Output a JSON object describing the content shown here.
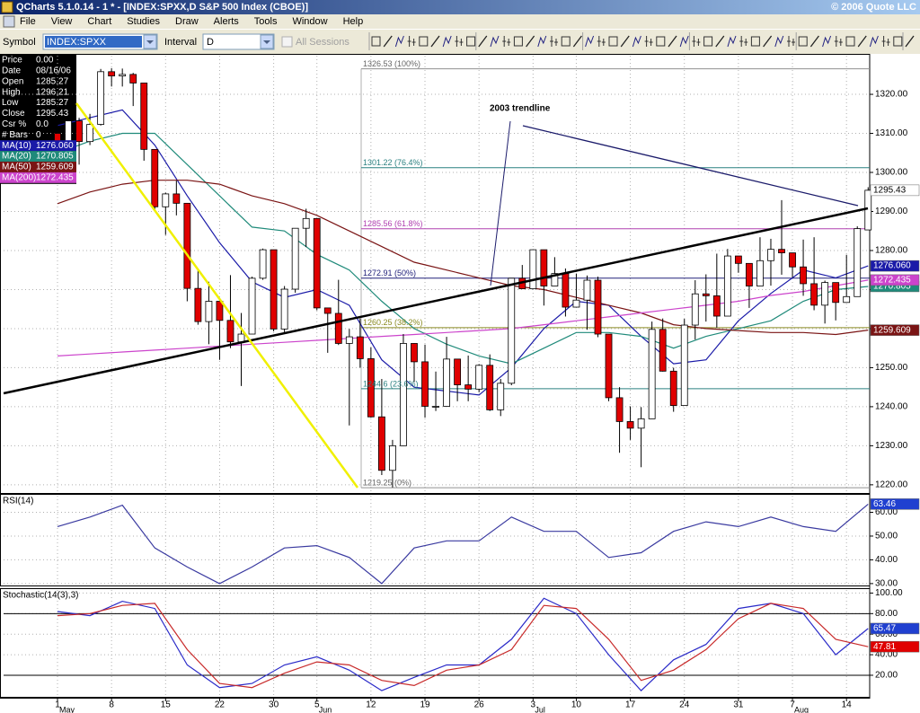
{
  "window": {
    "title": "QCharts 5.1.0.14 - 1 * - [INDEX:SPXX,D S&P 500 Index (CBOE)]",
    "copyright": "© 2006 Quote LLC",
    "menu": [
      "File",
      "View",
      "Chart",
      "Studies",
      "Draw",
      "Alerts",
      "Tools",
      "Window",
      "Help"
    ],
    "symbol_label": "Symbol",
    "symbol": "INDEX:SPXX",
    "interval_label": "Interval",
    "interval": "D",
    "all_sessions": "All Sessions"
  },
  "info_panel": [
    {
      "label": "Price",
      "value": "0.00"
    },
    {
      "label": "Date",
      "value": "08/16/06"
    },
    {
      "label": "Open",
      "value": "1285.27"
    },
    {
      "label": "High",
      "value": "1296.21"
    },
    {
      "label": "Low",
      "value": "1285.27"
    },
    {
      "label": "Close",
      "value": "1295.43"
    },
    {
      "label": "Csr %",
      "value": "0.0"
    },
    {
      "label": "# Bars",
      "value": "0"
    }
  ],
  "chart_data": [
    {
      "type": "candlestick",
      "annotation": "2003 trendline",
      "categories": [
        "1",
        null,
        null,
        null,
        null,
        "8",
        null,
        null,
        null,
        null,
        "15",
        null,
        null,
        null,
        null,
        "22",
        null,
        null,
        null,
        null,
        "30",
        null,
        null,
        null,
        "5",
        null,
        null,
        null,
        null,
        "12",
        null,
        null,
        null,
        null,
        "19",
        null,
        null,
        null,
        null,
        "26",
        null,
        null,
        null,
        null,
        "3",
        null,
        null,
        null,
        "10",
        null,
        null,
        null,
        null,
        "17",
        null,
        null,
        null,
        null,
        "24",
        null,
        null,
        null,
        null,
        "31",
        null,
        null,
        null,
        null,
        "7",
        null,
        null,
        null,
        null,
        "14",
        null,
        null
      ],
      "month_labels": [
        "May",
        null,
        null,
        null,
        null,
        null,
        null,
        null,
        null,
        null,
        null,
        null,
        null,
        null,
        null,
        null,
        null,
        null,
        null,
        null,
        null,
        null,
        null,
        null,
        "Jun",
        null,
        null,
        null,
        null,
        null,
        null,
        null,
        null,
        null,
        null,
        null,
        null,
        null,
        null,
        null,
        null,
        null,
        null,
        null,
        "Jul",
        null,
        null,
        null,
        null,
        null,
        null,
        null,
        null,
        null,
        null,
        null,
        null,
        null,
        null,
        null,
        null,
        null,
        null,
        null,
        null,
        null,
        null,
        null,
        "Aug",
        null,
        null,
        null,
        null,
        null,
        null,
        null
      ],
      "candles": [
        [
          1310,
          1317,
          1303,
          1305.2
        ],
        [
          1305.2,
          1314,
          1305,
          1313.2
        ],
        [
          1313.2,
          1314,
          1302,
          1307.9
        ],
        [
          1307.9,
          1315,
          1307,
          1312.3
        ],
        [
          1312.3,
          1326.5,
          1312,
          1325.8
        ],
        [
          1325.8,
          1326.7,
          1322,
          1324.7
        ],
        [
          1324.7,
          1326.6,
          1322,
          1325.1
        ],
        [
          1325.1,
          1325.5,
          1317,
          1322.9
        ],
        [
          1322.9,
          1322.9,
          1303,
          1305.9
        ],
        [
          1305.9,
          1305.9,
          1290,
          1291.2
        ],
        [
          1291.2,
          1294.8,
          1284,
          1294.5
        ],
        [
          1294.5,
          1297.9,
          1289,
          1292.1
        ],
        [
          1292.1,
          1292.1,
          1267,
          1270.3
        ],
        [
          1270.3,
          1274.9,
          1261,
          1261.8
        ],
        [
          1261.8,
          1272,
          1256,
          1267
        ],
        [
          1267,
          1267,
          1252,
          1262.1
        ],
        [
          1262.1,
          1273.7,
          1255,
          1256.6
        ],
        [
          1256.6,
          1264,
          1245.3,
          1258.6
        ],
        [
          1258.6,
          1273.3,
          1258.6,
          1272.9
        ],
        [
          1272.9,
          1280.5,
          1272.5,
          1280.2
        ],
        [
          1280.2,
          1280.2,
          1259.3,
          1259.9
        ],
        [
          1259.9,
          1270.9,
          1259,
          1270.1
        ],
        [
          1270.1,
          1285.7,
          1269.2,
          1285.7
        ],
        [
          1285.7,
          1290.7,
          1280.9,
          1288.2
        ],
        [
          1288.2,
          1288.2,
          1264.7,
          1265.3
        ],
        [
          1265.3,
          1265.3,
          1253.8,
          1263.9
        ],
        [
          1263.9,
          1272.5,
          1255.8,
          1256.2
        ],
        [
          1256.2,
          1259.9,
          1235.2,
          1257.9
        ],
        [
          1257.9,
          1262.6,
          1250,
          1252.3
        ],
        [
          1252.3,
          1255.2,
          1237.2,
          1237.4
        ],
        [
          1237.4,
          1247.1,
          1222.5,
          1223.7
        ],
        [
          1223.7,
          1231.5,
          1219.3,
          1230
        ],
        [
          1230,
          1258.6,
          1230,
          1256.2
        ],
        [
          1256.2,
          1256.3,
          1246.3,
          1251.5
        ],
        [
          1251.5,
          1255.9,
          1237.2,
          1240.1
        ],
        [
          1240.1,
          1249,
          1238.9,
          1240.1
        ],
        [
          1240.1,
          1257.9,
          1240.1,
          1252.2
        ],
        [
          1252.2,
          1252.2,
          1241.4,
          1245.6
        ],
        [
          1245.6,
          1253.1,
          1241.4,
          1244.5
        ],
        [
          1244.5,
          1250.9,
          1243.7,
          1250.6
        ],
        [
          1250.6,
          1253.4,
          1238.9,
          1239.2
        ],
        [
          1239.2,
          1247.1,
          1237.6,
          1246
        ],
        [
          1246,
          1272.9,
          1245.5,
          1272.9
        ],
        [
          1272.9,
          1276.3,
          1270.2,
          1270.2
        ],
        [
          1270.2,
          1280.3,
          1270.2,
          1280.2
        ],
        [
          1280.2,
          1280.2,
          1265.9,
          1270.9
        ],
        [
          1270.9,
          1278.3,
          1270.9,
          1274.1
        ],
        [
          1274.1,
          1275.4,
          1263.1,
          1265.5
        ],
        [
          1265.5,
          1274.1,
          1265.5,
          1267.3
        ],
        [
          1267.3,
          1273.6,
          1259.7,
          1272.4
        ],
        [
          1272.4,
          1273.3,
          1257.8,
          1258.6
        ],
        [
          1258.6,
          1258.6,
          1241.4,
          1242.3
        ],
        [
          1242.3,
          1245,
          1228.2,
          1236.2
        ],
        [
          1236.2,
          1240.1,
          1231.5,
          1234.5
        ],
        [
          1234.5,
          1239.9,
          1224.5,
          1236.9
        ],
        [
          1236.9,
          1261.8,
          1236.9,
          1259.8
        ],
        [
          1259.8,
          1262.6,
          1249,
          1249.1
        ],
        [
          1249.1,
          1250,
          1238.7,
          1240.3
        ],
        [
          1240.3,
          1262.5,
          1240.3,
          1260.9
        ],
        [
          1260.9,
          1272.4,
          1257.2,
          1268.9
        ],
        [
          1268.9,
          1273.9,
          1261.8,
          1268.4
        ],
        [
          1268.4,
          1279.2,
          1260.2,
          1263.2
        ],
        [
          1263.2,
          1280.4,
          1263.2,
          1278.6
        ],
        [
          1278.6,
          1278.6,
          1274.3,
          1276.7
        ],
        [
          1276.7,
          1276.7,
          1265.3,
          1270.9
        ],
        [
          1270.9,
          1283.4,
          1270.9,
          1277.4
        ],
        [
          1277.4,
          1283,
          1271,
          1280.3
        ],
        [
          1280.3,
          1292.9,
          1273.8,
          1279.4
        ],
        [
          1279.4,
          1279.4,
          1273.1,
          1275.8
        ],
        [
          1275.8,
          1282.8,
          1268.4,
          1271.5
        ],
        [
          1271.5,
          1283.4,
          1264.7,
          1266
        ],
        [
          1266,
          1272.3,
          1261.3,
          1271.8
        ],
        [
          1271.8,
          1271.8,
          1262.1,
          1266.7
        ],
        [
          1266.7,
          1278.9,
          1266.7,
          1268.2
        ],
        [
          1268.2,
          1286.2,
          1268.2,
          1285.6
        ],
        [
          1285.27,
          1296.21,
          1285.27,
          1295.43
        ]
      ],
      "up_color": "#ffffff",
      "down_color": "#e00000",
      "ylim": [
        1217.9,
        1329.9
      ],
      "yticks": [
        {
          "value": 1220,
          "label": "1220.00"
        },
        {
          "value": 1230,
          "label": "1230.00"
        },
        {
          "value": 1240,
          "label": "1240.00"
        },
        {
          "value": 1250,
          "label": "1250.00"
        },
        {
          "value": 1260,
          "label": "1260.00"
        },
        {
          "value": 1270,
          "label": "1270.00"
        },
        {
          "value": 1280,
          "label": "1280.00"
        },
        {
          "value": 1290,
          "label": "1290.00"
        },
        {
          "value": 1300,
          "label": "1300.00"
        },
        {
          "value": 1310,
          "label": "1310.00"
        },
        {
          "value": 1320,
          "label": "1320.00"
        }
      ],
      "grid": true,
      "tag": {
        "value": 1295.43,
        "label": "1295.43",
        "color": "#ffffff"
      },
      "fib_levels": [
        {
          "value": 1326.53,
          "label": "1326.53 (100%)",
          "color": "#909090"
        },
        {
          "value": 1301.22,
          "label": "1301.22 (76.4%)",
          "color": "#2a8080"
        },
        {
          "value": 1285.56,
          "label": "1285.56 (61.8%)",
          "color": "#b040b0"
        },
        {
          "value": 1272.91,
          "label": "1272.91 (50%)",
          "color": "#20207a"
        },
        {
          "value": 1260.25,
          "label": "1260.25 (38.2%)",
          "color": "#8a8a20"
        },
        {
          "value": 1244.6,
          "label": "1244.6 (23.6%)",
          "color": "#2a8080"
        },
        {
          "value": 1219.25,
          "label": "1219.25 (0%)",
          "color": "#909090"
        }
      ],
      "x": [
        0,
        3,
        6,
        9,
        12,
        15,
        18,
        21,
        24,
        27,
        30,
        33,
        36,
        39,
        42,
        45,
        48,
        51,
        54,
        57,
        60,
        63,
        66,
        69,
        72,
        75
      ],
      "series": [
        {
          "name": "MA(10)",
          "color": "#1a1aa8",
          "values": [
            1312,
            1314,
            1316,
            1307,
            1294,
            1282,
            1272,
            1268,
            1270,
            1266,
            1252,
            1245,
            1244,
            1243,
            1250,
            1260,
            1267,
            1266,
            1258,
            1251,
            1252,
            1262,
            1269,
            1275,
            1273,
            1276.06
          ],
          "tag": {
            "value": 1276.06,
            "label": "1276.060"
          }
        },
        {
          "name": "MA(20)",
          "color": "#1f8a7a",
          "values": [
            1305,
            1308,
            1310,
            1310,
            1302,
            1294,
            1286,
            1285,
            1279,
            1275,
            1267,
            1260,
            1256,
            1253,
            1251,
            1255,
            1259,
            1259,
            1258,
            1255,
            1258,
            1260,
            1262,
            1267,
            1270,
            1270.805
          ],
          "tag": {
            "value": 1270.805,
            "label": "1270.805"
          }
        },
        {
          "name": "MA(50)",
          "color": "#7a1414",
          "values": [
            1292,
            1295,
            1297,
            1298,
            1298,
            1297,
            1294,
            1292,
            1289,
            1285,
            1281,
            1277,
            1275,
            1273,
            1271,
            1270,
            1268,
            1266,
            1264,
            1261,
            1260,
            1259.5,
            1259,
            1259,
            1258.5,
            1259.609
          ],
          "tag": {
            "value": 1259.609,
            "label": "1259.609"
          }
        },
        {
          "name": "MA(200)",
          "color": "#cc44cc",
          "values": [
            1253,
            1253.5,
            1254,
            1254.5,
            1255,
            1255.5,
            1256,
            1256.5,
            1257,
            1257.5,
            1258,
            1258.5,
            1259,
            1259.5,
            1260,
            1261,
            1262,
            1263,
            1264,
            1265,
            1266,
            1267,
            1268.5,
            1269.5,
            1271,
            1272.435
          ],
          "tag": {
            "value": 1272.435,
            "label": "1272.435"
          }
        }
      ]
    },
    {
      "type": "line",
      "title": "RSI(14)",
      "ylim": [
        29.2,
        67
      ],
      "yticks": [
        {
          "value": 30,
          "label": "30.00"
        },
        {
          "value": 40,
          "label": "40.00"
        },
        {
          "value": 50,
          "label": "50.00"
        },
        {
          "value": 60,
          "label": "60.00"
        }
      ],
      "grid": true,
      "x": [
        0,
        3,
        6,
        9,
        12,
        15,
        18,
        21,
        24,
        27,
        30,
        33,
        36,
        39,
        42,
        45,
        48,
        51,
        54,
        57,
        60,
        63,
        66,
        69,
        72,
        75
      ],
      "series": [
        {
          "color": "#3a3aa0",
          "values": [
            54,
            58,
            63,
            45,
            37,
            30,
            37,
            45,
            46,
            41,
            30,
            45,
            48,
            48,
            58,
            52,
            52,
            41,
            43,
            52,
            56,
            54,
            58,
            54,
            52,
            63.46
          ],
          "tag": {
            "value": 63.46,
            "label": "63.46",
            "color": "#2040d0"
          }
        }
      ]
    },
    {
      "type": "line",
      "title": "Stochastic(14(3),3)",
      "ylim": [
        -1,
        103
      ],
      "yticks": [
        {
          "value": 20,
          "label": "20.00"
        },
        {
          "value": 40,
          "label": "40.00"
        },
        {
          "value": 60,
          "label": "60.00"
        },
        {
          "value": 80,
          "label": "80.00"
        },
        {
          "value": 100,
          "label": "100.00"
        }
      ],
      "grid": true,
      "reference_lines": [
        80,
        20
      ],
      "x": [
        0,
        3,
        6,
        9,
        12,
        15,
        18,
        21,
        24,
        27,
        30,
        33,
        36,
        39,
        42,
        45,
        48,
        51,
        54,
        57,
        60,
        63,
        66,
        69,
        72,
        75
      ],
      "series": [
        {
          "color": "#2a2ac8",
          "values": [
            82,
            78,
            92,
            85,
            30,
            8,
            12,
            30,
            38,
            25,
            5,
            18,
            30,
            30,
            55,
            95,
            80,
            40,
            5,
            35,
            50,
            85,
            90,
            80,
            40,
            65.47
          ],
          "tag": {
            "value": 65.47,
            "label": "65.47",
            "color": "#2040d0"
          }
        },
        {
          "color": "#c82a2a",
          "values": [
            78,
            80,
            88,
            90,
            45,
            12,
            8,
            22,
            33,
            30,
            15,
            10,
            25,
            30,
            45,
            88,
            85,
            55,
            15,
            25,
            45,
            75,
            90,
            85,
            55,
            47.81
          ],
          "tag": {
            "value": 47.81,
            "label": "47.81",
            "color": "#e00000"
          }
        }
      ]
    }
  ]
}
